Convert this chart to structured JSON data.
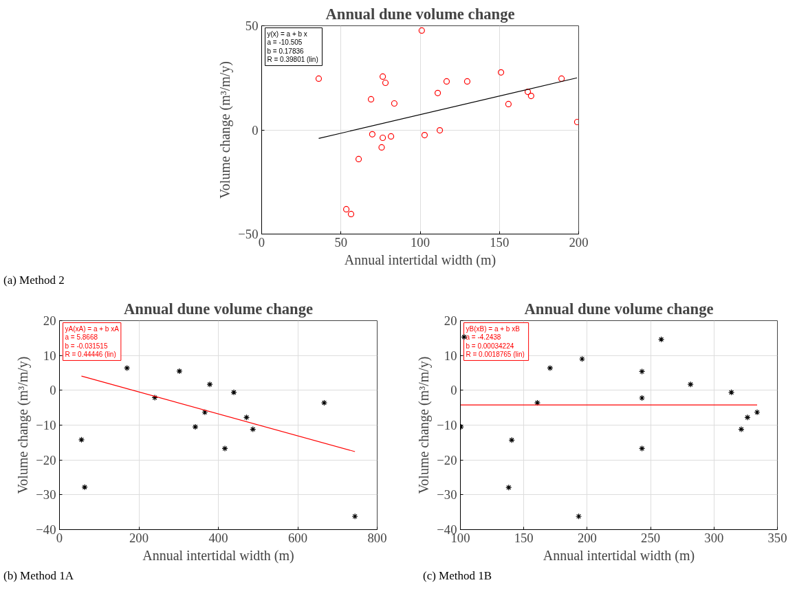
{
  "chart_data": [
    {
      "type": "scatter",
      "title": "Annual dune volume change",
      "xlabel": "Annual intertidal width (m)",
      "ylabel": "Volume change (m³/m/y)",
      "xlim": [
        0,
        200
      ],
      "ylim": [
        -50,
        50
      ],
      "xticks": [
        0,
        50,
        100,
        150,
        200
      ],
      "yticks": [
        -50,
        0,
        50
      ],
      "grid": true,
      "marker": "circle",
      "annotations": [
        "y(x) = a + b x",
        "a = -10.505",
        "b = 0.17836",
        "R = 0.39801  (lin)",
        "(a) Method 2"
      ],
      "series": [
        {
          "color": "#ff0000",
          "x": [
            36.0,
            101,
            76.4,
            78.1,
            69,
            83.7,
            69.8,
            76.4,
            81.6,
            75.7,
            61.2,
            53.4,
            56.4,
            102.8,
            112.4,
            111.1,
            116.7,
            129.7,
            151,
            155.7,
            167.9,
            170,
            189.2,
            199.1
          ],
          "values": [
            24.6,
            47.7,
            25.6,
            22.6,
            14.7,
            12.7,
            -2.1,
            -3.8,
            -3.1,
            -8.4,
            -14,
            -38.1,
            -40.4,
            -2.5,
            -0.2,
            17.7,
            23.3,
            23.3,
            27.6,
            12.4,
            18.3,
            16.3,
            24.6,
            3.8
          ]
        },
        {
          "type": "line",
          "marker": "none",
          "color": "#000000",
          "x": [
            36,
            199
          ],
          "values": [
            -4.1,
            25.0
          ]
        }
      ]
    },
    {
      "type": "scatter",
      "title": "Annual dune volume change",
      "xlabel": "Annual intertidal width (m)",
      "ylabel": "Volume change (m³/m/y)",
      "xlim": [
        0,
        800
      ],
      "ylim": [
        -40,
        20
      ],
      "xticks": [
        0,
        200,
        400,
        600,
        800
      ],
      "yticks": [
        -40,
        -30,
        -20,
        -10,
        0,
        10,
        20
      ],
      "grid": true,
      "marker": "cross",
      "annotations": [
        "yA(xA) = a + b xA",
        "a = 5.8668",
        "b = -0.031515",
        "R = 0.44446  (lin)",
        "(b) Method 1A"
      ],
      "series": [
        {
          "color": "#000000",
          "x": [
            55.4,
            63.5,
            170,
            240,
            302,
            378.5,
            366,
            342,
            439,
            471,
            487,
            416.5,
            666.6,
            744
          ],
          "values": [
            -14.2,
            -27.8,
            6.4,
            -2.1,
            5.5,
            1.7,
            -6.3,
            -10.5,
            -0.6,
            -7.8,
            -11.2,
            -16.7,
            -3.6,
            -36.2
          ]
        },
        {
          "type": "line",
          "marker": "none",
          "color": "#ff0000",
          "x": [
            55.4,
            744
          ],
          "values": [
            4.1,
            -17.6
          ]
        }
      ]
    },
    {
      "type": "scatter",
      "title": "Annual dune volume change",
      "xlabel": "Annual intertidal width (m)",
      "ylabel": "Volume change (m³/m/y)",
      "xlim": [
        100,
        350
      ],
      "ylim": [
        -40,
        20
      ],
      "xticks": [
        100,
        150,
        200,
        250,
        300,
        350
      ],
      "yticks": [
        -40,
        -30,
        -20,
        -10,
        0,
        10,
        20
      ],
      "grid": true,
      "marker": "cross",
      "annotations": [
        "yB(xB) = a + b xB",
        "a = -4.2438",
        "b = 0.00034224",
        "R = 0.0018765  (lin)",
        "(c) Method 1B"
      ],
      "series": [
        {
          "color": "#000000",
          "x": [
            102.9,
            100.4,
            140.5,
            138.1,
            170.7,
            160.7,
            196,
            193.3,
            243.2,
            243.2,
            243.2,
            258.4,
            281.5,
            313.7,
            321.5,
            326.4,
            334
          ],
          "values": [
            15.3,
            -10.5,
            -14.3,
            -27.9,
            6.4,
            -3.6,
            9.0,
            -36.2,
            5.4,
            -2.2,
            -16.7,
            14.6,
            1.7,
            -0.6,
            -11.2,
            -7.8,
            -6.3
          ]
        },
        {
          "type": "line",
          "marker": "none",
          "color": "#ff0000",
          "x": [
            100,
            334
          ],
          "values": [
            -4.2,
            -4.2
          ]
        }
      ]
    }
  ]
}
